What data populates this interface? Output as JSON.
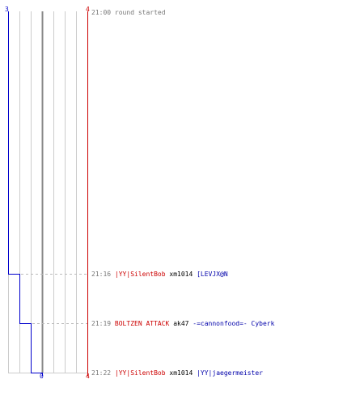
{
  "colors": {
    "team_blue": "#0000cc",
    "team_red": "#cc0000",
    "grid": "#cccccc",
    "timestamp": "#777777"
  },
  "score_axis": {
    "blue_top": "3",
    "red_top": "4",
    "blue_bottom": "0",
    "red_bottom": "4"
  },
  "start_event": {
    "time": "21:00",
    "text": "round started"
  },
  "events": [
    {
      "time": "21:16",
      "killer": "|YY|SilentBob",
      "killer_team": "red",
      "weapon": "xm1014",
      "victim": "[LEVJX@N",
      "victim_team": "blue",
      "blue_remaining": 2
    },
    {
      "time": "21:19",
      "killer": "BOLTZEN ATTACK",
      "killer_team": "red",
      "weapon": "ak47",
      "victim": "-=cannonfood=- Cyberk",
      "victim_team": "blue",
      "blue_remaining": 1
    },
    {
      "time": "21:22",
      "killer": "|YY|SilentBob",
      "killer_team": "red",
      "weapon": "xm1014",
      "victim": "|YY|jaegermeister",
      "victim_team": "blue",
      "blue_remaining": 0
    }
  ]
}
